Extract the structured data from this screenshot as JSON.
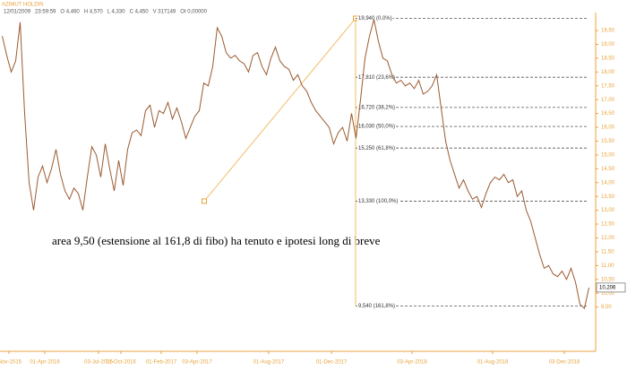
{
  "header": {
    "title": "AZIMUT HOLDIN",
    "fields": [
      "12/01/2009",
      "23:59:59",
      "O 4,460",
      "H 4,570",
      "L 4,330",
      "C 4,450",
      "V 317149",
      "OI 0,00000"
    ]
  },
  "chart_data": {
    "type": "line",
    "series": [
      {
        "name": "AZIMUT HOLDIN",
        "color": "#9a5a30",
        "values": [
          19.3,
          18.6,
          18.0,
          18.4,
          19.8,
          16.5,
          14.0,
          13.0,
          14.2,
          14.6,
          14.0,
          14.5,
          15.2,
          14.3,
          13.7,
          13.4,
          13.8,
          13.6,
          13.0,
          14.2,
          15.3,
          15.0,
          14.2,
          15.4,
          14.5,
          13.7,
          14.8,
          13.9,
          15.2,
          15.8,
          15.9,
          15.7,
          16.6,
          16.8,
          16.0,
          16.6,
          16.5,
          16.9,
          16.3,
          16.7,
          16.2,
          15.6,
          16.0,
          16.4,
          16.6,
          17.6,
          17.5,
          18.2,
          19.6,
          19.3,
          18.7,
          18.5,
          18.6,
          18.4,
          18.3,
          18.0,
          18.6,
          18.7,
          18.2,
          17.9,
          18.5,
          18.9,
          18.4,
          18.2,
          18.1,
          17.7,
          17.9,
          17.5,
          17.3,
          16.9,
          16.6,
          16.4,
          16.2,
          16.0,
          15.4,
          15.8,
          16.0,
          15.5,
          16.5,
          15.6,
          17.0,
          18.5,
          19.3,
          19.9,
          19.1,
          18.5,
          18.4,
          17.9,
          17.6,
          17.7,
          17.5,
          17.6,
          17.4,
          17.7,
          17.2,
          17.3,
          17.5,
          17.9,
          16.7,
          15.5,
          14.8,
          14.3,
          13.8,
          14.1,
          13.7,
          13.4,
          13.5,
          13.1,
          13.6,
          14.0,
          14.2,
          14.1,
          14.3,
          14.0,
          14.1,
          13.5,
          13.7,
          13.0,
          12.6,
          12.0,
          11.4,
          10.9,
          11.0,
          10.7,
          10.6,
          10.8,
          10.5,
          10.9,
          10.4,
          9.6,
          9.45,
          10.2
        ]
      }
    ],
    "xlim": [
      0,
      133
    ],
    "ylim": [
      7.9,
      20.15
    ],
    "xticks": [
      {
        "value": 2,
        "label": "-Nov-2015"
      },
      {
        "value": 10,
        "label": "01-Apr-2016"
      },
      {
        "value": 22,
        "label": "03-Jul-2016"
      },
      {
        "value": 27,
        "label": "01-Oct-2016"
      },
      {
        "value": 36,
        "label": "01-Feb-2017"
      },
      {
        "value": 44,
        "label": "03-Apr-2017"
      },
      {
        "value": 60,
        "label": "01-Aug-2017"
      },
      {
        "value": 74,
        "label": "01-Dec-2017"
      },
      {
        "value": 92,
        "label": "03-Apr-2018"
      },
      {
        "value": 110,
        "label": "01-Aug-2018"
      },
      {
        "value": 126,
        "label": "03-Dec-2018"
      }
    ],
    "yticks": [
      {
        "value": 9.5,
        "label": "9,50"
      },
      {
        "value": 10,
        "label": "10,00"
      },
      {
        "value": 10.5,
        "label": "10,50"
      },
      {
        "value": 11,
        "label": "11,00"
      },
      {
        "value": 11.5,
        "label": "11,50"
      },
      {
        "value": 12,
        "label": "12,00"
      },
      {
        "value": 12.5,
        "label": "12,50"
      },
      {
        "value": 13,
        "label": "13,00"
      },
      {
        "value": 13.5,
        "label": "13,50"
      },
      {
        "value": 14,
        "label": "14,00"
      },
      {
        "value": 14.5,
        "label": "14,50"
      },
      {
        "value": 15,
        "label": "15,00"
      },
      {
        "value": 15.5,
        "label": "15,50"
      },
      {
        "value": 16,
        "label": "16,00"
      },
      {
        "value": 16.5,
        "label": "16,50"
      },
      {
        "value": 17,
        "label": "17,00"
      },
      {
        "value": 17.5,
        "label": "17,50"
      },
      {
        "value": 18,
        "label": "18,00"
      },
      {
        "value": 18.5,
        "label": "18,50"
      },
      {
        "value": 19,
        "label": "19,00"
      },
      {
        "value": 19.5,
        "label": "19,50"
      }
    ],
    "last_price": {
      "value": 10.206,
      "label": "10,206"
    },
    "fib_start": {
      "x": 45.6,
      "y": 13.33
    },
    "fib_end": {
      "x": 79.4,
      "y": 19.94
    },
    "fib_levels": [
      {
        "value": 19.94,
        "label": "19,940 (0,0%)"
      },
      {
        "value": 17.81,
        "label": "17,810 (23,6%)"
      },
      {
        "value": 16.72,
        "label": "16,720 (38,2%)"
      },
      {
        "value": 16.03,
        "label": "16,030 (50,0%)"
      },
      {
        "value": 15.25,
        "label": "15,250 (61,8%)"
      },
      {
        "value": 13.33,
        "label": "13,330 (100,0%)"
      },
      {
        "value": 9.54,
        "label": "9,540 (161,8%)"
      }
    ],
    "annotation": "area 9,50 (estensione al 161,8 di fibo) ha tenuto e ipotesi long di breve"
  }
}
